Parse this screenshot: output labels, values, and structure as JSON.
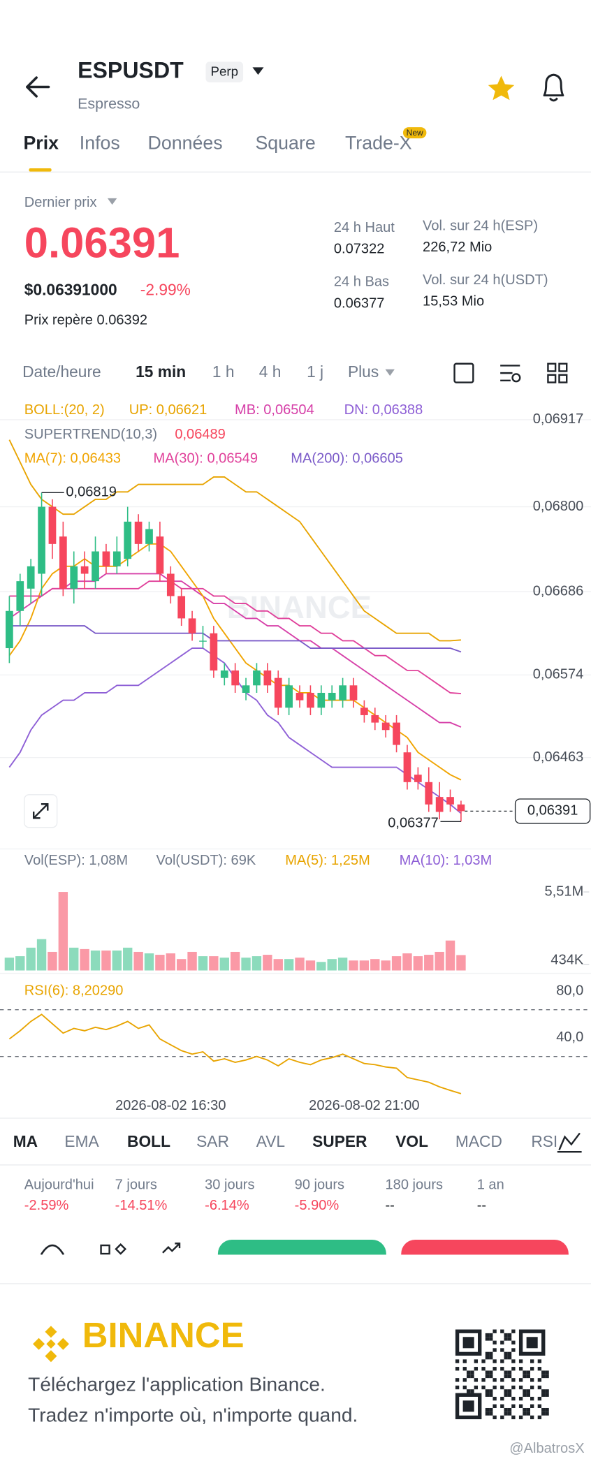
{
  "header": {
    "symbol": "ESPUSDT",
    "badge": "Perp",
    "name": "Espresso"
  },
  "tabs": {
    "items": [
      "Prix",
      "Infos",
      "Données",
      "Square",
      "Trade-X"
    ],
    "badge": "New"
  },
  "price": {
    "label": "Dernier prix",
    "last": "0.06391",
    "usd": "$0.06391000",
    "change": "-2.99%",
    "mark": "Prix repère 0.06392"
  },
  "stats": [
    {
      "label": "24 h Haut",
      "value": "0.07322"
    },
    {
      "label": "Vol. sur 24 h(ESP)",
      "value": "226,72 Mio"
    },
    {
      "label": "24 h Bas",
      "value": "0.06377"
    },
    {
      "label": "Vol. sur 24 h(USDT)",
      "value": "15,53 Mio"
    }
  ],
  "intervals": [
    "Date/heure",
    "15 min",
    "1 h",
    "4 h",
    "1 j",
    "Plus"
  ],
  "chart_data": {
    "type": "candlestick",
    "legend_title": "BOLL:(20, 2)",
    "supertrend": {
      "label": "SUPERTREND(10,3)",
      "value": "0,06489"
    },
    "watermark": "BINANCE",
    "categories": [
      null,
      null,
      null,
      null,
      null,
      null,
      null,
      null,
      null,
      null,
      null,
      null,
      null,
      null,
      null,
      "2026-08-02 16:30",
      null,
      null,
      null,
      null,
      null,
      null,
      null,
      null,
      null,
      null,
      null,
      null,
      null,
      null,
      null,
      null,
      null,
      "2026-08-02 21:00",
      null,
      null,
      null,
      null,
      null,
      null,
      null,
      null,
      null
    ],
    "candles": [
      [
        0.0661,
        0.0668,
        0.0659,
        0.0666
      ],
      [
        0.0666,
        0.0671,
        0.0664,
        0.067
      ],
      [
        0.0669,
        0.0673,
        0.0667,
        0.0672
      ],
      [
        0.0671,
        0.06819,
        0.0668,
        0.068
      ],
      [
        0.068,
        0.0681,
        0.0673,
        0.0675
      ],
      [
        0.0676,
        0.0678,
        0.0668,
        0.0669
      ],
      [
        0.0669,
        0.0674,
        0.0667,
        0.0672
      ],
      [
        0.0672,
        0.0674,
        0.0669,
        0.0671
      ],
      [
        0.067,
        0.0676,
        0.0669,
        0.0674
      ],
      [
        0.0674,
        0.0675,
        0.0671,
        0.0672
      ],
      [
        0.0672,
        0.0676,
        0.0671,
        0.0674
      ],
      [
        0.0673,
        0.068,
        0.0672,
        0.0678
      ],
      [
        0.0678,
        0.0679,
        0.0674,
        0.0675
      ],
      [
        0.0675,
        0.0678,
        0.0674,
        0.0677
      ],
      [
        0.0676,
        0.0678,
        0.067,
        0.0671
      ],
      [
        0.0671,
        0.0672,
        0.0667,
        0.0668
      ],
      [
        0.0668,
        0.0669,
        0.0664,
        0.0665
      ],
      [
        0.0665,
        0.0666,
        0.0662,
        0.0663
      ],
      [
        0.0662,
        0.0664,
        0.0661,
        0.0662
      ],
      [
        0.0663,
        0.0664,
        0.0657,
        0.0658
      ],
      [
        0.0657,
        0.0659,
        0.0656,
        0.0658
      ],
      [
        0.0658,
        0.0659,
        0.0655,
        0.0656
      ],
      [
        0.0655,
        0.0657,
        0.0654,
        0.0656
      ],
      [
        0.0656,
        0.0659,
        0.0655,
        0.0658
      ],
      [
        0.0658,
        0.0659,
        0.0655,
        0.0656
      ],
      [
        0.0657,
        0.0658,
        0.0652,
        0.0653
      ],
      [
        0.0653,
        0.0657,
        0.0652,
        0.0656
      ],
      [
        0.0655,
        0.0656,
        0.0653,
        0.0654
      ],
      [
        0.0655,
        0.0656,
        0.0652,
        0.0653
      ],
      [
        0.0653,
        0.0656,
        0.0652,
        0.0655
      ],
      [
        0.0654,
        0.0656,
        0.0653,
        0.0655
      ],
      [
        0.0654,
        0.0657,
        0.0653,
        0.0656
      ],
      [
        0.0656,
        0.0657,
        0.0653,
        0.0654
      ],
      [
        0.0653,
        0.0654,
        0.0651,
        0.0652
      ],
      [
        0.0652,
        0.0653,
        0.065,
        0.0651
      ],
      [
        0.0651,
        0.0652,
        0.0649,
        0.065
      ],
      [
        0.0651,
        0.0652,
        0.0647,
        0.0648
      ],
      [
        0.0647,
        0.0648,
        0.0642,
        0.0643
      ],
      [
        0.0644,
        0.0645,
        0.0642,
        0.0643
      ],
      [
        0.0643,
        0.0645,
        0.0639,
        0.064
      ],
      [
        0.0641,
        0.0643,
        0.0638,
        0.0639
      ],
      [
        0.0641,
        0.0642,
        0.0639,
        0.064
      ],
      [
        0.064,
        0.06405,
        0.06377,
        0.06391
      ]
    ],
    "up_color": "#2ebd85",
    "down_color": "#f6465d",
    "ylim": [
      0.06344,
      0.06947
    ],
    "yticks": [
      {
        "value": 0.06917,
        "label": "0,06917"
      },
      {
        "value": 0.068,
        "label": "0,06800"
      },
      {
        "value": 0.06686,
        "label": "0,06686"
      },
      {
        "value": 0.06574,
        "label": "0,06574"
      },
      {
        "value": 0.06463,
        "label": "0,06463"
      }
    ],
    "grid": true,
    "series": [
      {
        "name": "UP: 0,06621",
        "color": "#e8a400",
        "values": [
          0.0689,
          0.0686,
          0.0683,
          0.0681,
          0.068,
          0.0679,
          0.0679,
          0.068,
          0.0681,
          0.0681,
          0.0682,
          0.0682,
          0.0683,
          0.0683,
          0.0683,
          0.0683,
          0.0683,
          0.0683,
          0.0683,
          0.0684,
          0.0684,
          0.0683,
          0.0682,
          0.0682,
          0.0681,
          0.068,
          0.0679,
          0.0678,
          0.0676,
          0.0674,
          0.0672,
          0.067,
          0.0668,
          0.0666,
          0.0665,
          0.0664,
          0.0663,
          0.0663,
          0.0663,
          0.0663,
          0.0662,
          0.0662,
          0.06621
        ]
      },
      {
        "name": "MB: 0,06504",
        "color": "#d63fa8",
        "values": [
          0.0665,
          0.0666,
          0.0667,
          0.0668,
          0.0669,
          0.0669,
          0.067,
          0.067,
          0.067,
          0.0671,
          0.0671,
          0.0671,
          0.0671,
          0.0671,
          0.0671,
          0.067,
          0.067,
          0.0669,
          0.0668,
          0.0667,
          0.0667,
          0.0666,
          0.0665,
          0.0665,
          0.0664,
          0.0664,
          0.0663,
          0.0662,
          0.0662,
          0.0661,
          0.0661,
          0.066,
          0.0659,
          0.0658,
          0.0657,
          0.0656,
          0.0655,
          0.0654,
          0.0653,
          0.0652,
          0.0651,
          0.0651,
          0.06504
        ]
      },
      {
        "name": "DN: 0,06388",
        "color": "#8e5fd6",
        "values": [
          0.0645,
          0.0647,
          0.065,
          0.0652,
          0.0653,
          0.0654,
          0.0654,
          0.0655,
          0.0655,
          0.0655,
          0.0656,
          0.0656,
          0.0656,
          0.0657,
          0.0658,
          0.0659,
          0.066,
          0.0661,
          0.0661,
          0.066,
          0.0659,
          0.0657,
          0.0655,
          0.0654,
          0.0652,
          0.0651,
          0.0649,
          0.0648,
          0.0647,
          0.0646,
          0.0645,
          0.0645,
          0.0645,
          0.0645,
          0.0645,
          0.0645,
          0.0645,
          0.0644,
          0.0643,
          0.0642,
          0.0641,
          0.064,
          0.06388
        ]
      },
      {
        "name": "MA(7): 0,06433",
        "color": "#f0a400",
        "values": [
          0.066,
          0.0662,
          0.0665,
          0.0669,
          0.0671,
          0.0672,
          0.0672,
          0.0673,
          0.0672,
          0.0672,
          0.0672,
          0.0673,
          0.0674,
          0.0675,
          0.0675,
          0.0674,
          0.0672,
          0.067,
          0.0668,
          0.0665,
          0.0663,
          0.0661,
          0.0659,
          0.0658,
          0.0657,
          0.0656,
          0.0656,
          0.0655,
          0.0655,
          0.0654,
          0.0654,
          0.0654,
          0.0654,
          0.0653,
          0.0652,
          0.0651,
          0.065,
          0.0649,
          0.0647,
          0.0646,
          0.0645,
          0.0644,
          0.06433
        ]
      },
      {
        "name": "MA(30): 0,06549",
        "color": "#e0409a",
        "values": [
          0.0668,
          0.0668,
          0.0668,
          0.0668,
          0.0669,
          0.0669,
          0.0669,
          0.0669,
          0.0669,
          0.0669,
          0.0669,
          0.0669,
          0.0669,
          0.067,
          0.067,
          0.067,
          0.0669,
          0.0669,
          0.0669,
          0.0668,
          0.0668,
          0.0667,
          0.0667,
          0.0666,
          0.0666,
          0.0665,
          0.0665,
          0.0664,
          0.0664,
          0.0663,
          0.0663,
          0.0662,
          0.0662,
          0.0661,
          0.066,
          0.066,
          0.0659,
          0.0658,
          0.0658,
          0.0657,
          0.0656,
          0.0655,
          0.06549
        ]
      },
      {
        "name": "MA(200): 0,06605",
        "color": "#7a5ac8",
        "values": [
          0.0664,
          0.0664,
          0.0664,
          0.0664,
          0.0664,
          0.0664,
          0.0664,
          0.0664,
          0.0663,
          0.0663,
          0.0663,
          0.0663,
          0.0663,
          0.0663,
          0.0663,
          0.0663,
          0.0663,
          0.0663,
          0.0663,
          0.0662,
          0.0662,
          0.0662,
          0.0662,
          0.0662,
          0.0662,
          0.0662,
          0.0662,
          0.0662,
          0.0661,
          0.0661,
          0.0661,
          0.0661,
          0.0661,
          0.0661,
          0.0661,
          0.0661,
          0.0661,
          0.0661,
          0.0661,
          0.0661,
          0.0661,
          0.0661,
          0.06605
        ]
      }
    ],
    "annotations": {
      "high": {
        "value": 0.06819,
        "label": "0,06819"
      },
      "low": {
        "value": 0.06377,
        "label": "0,06377"
      },
      "last": {
        "value": 0.06391,
        "label": "0,06391"
      }
    },
    "volume": {
      "legend": [
        {
          "text": "Vol(ESP): 1,08M",
          "color": "#707a8a"
        },
        {
          "text": "Vol(USDT): 69K",
          "color": "#707a8a"
        },
        {
          "text": "MA(5): 1,25M",
          "color": "#e8a400"
        },
        {
          "text": "MA(10): 1,03M",
          "color": "#8e5fd6"
        }
      ],
      "values": [
        0.9,
        1.0,
        1.6,
        2.2,
        1.3,
        5.51,
        1.6,
        1.5,
        1.4,
        1.4,
        1.4,
        1.6,
        1.3,
        1.2,
        1.1,
        1.2,
        0.8,
        1.3,
        1.0,
        1.0,
        0.9,
        1.3,
        0.9,
        1.0,
        1.1,
        0.8,
        0.8,
        0.9,
        0.7,
        0.6,
        0.8,
        0.9,
        0.7,
        0.7,
        0.8,
        0.7,
        1.0,
        1.2,
        1.0,
        1.1,
        1.3,
        2.1,
        1.08
      ],
      "ylim": [
        0,
        5.51
      ],
      "yticks": [
        {
          "value": 5.51,
          "label": "5,51M"
        },
        {
          "value": 0.434,
          "label": "434K"
        }
      ]
    },
    "rsi": {
      "legend": "RSI(6): 8,20290",
      "color": "#e8a400",
      "values": [
        55,
        62,
        70,
        76,
        68,
        60,
        64,
        62,
        65,
        63,
        66,
        70,
        64,
        67,
        55,
        50,
        45,
        42,
        44,
        36,
        38,
        35,
        37,
        40,
        37,
        32,
        38,
        35,
        33,
        37,
        39,
        42,
        38,
        34,
        33,
        31,
        30,
        22,
        20,
        18,
        14,
        11,
        8.2029
      ],
      "ylim": [
        0,
        100
      ],
      "yticks": [
        {
          "value": 80,
          "label": "80,0"
        },
        {
          "value": 40,
          "label": "40,0"
        }
      ]
    }
  },
  "indicator_tabs": [
    "MA",
    "EMA",
    "BOLL",
    "SAR",
    "AVL",
    "SUPER",
    "VOL",
    "MACD",
    "RSI"
  ],
  "periods": [
    {
      "label": "Aujourd'hui",
      "change": "-2.59%"
    },
    {
      "label": "7 jours",
      "change": "-14.51%"
    },
    {
      "label": "30 jours",
      "change": "-6.14%"
    },
    {
      "label": "90 jours",
      "change": "-5.90%"
    },
    {
      "label": "180 jours",
      "change": "--"
    },
    {
      "label": "1 an",
      "change": "--"
    }
  ],
  "footer": {
    "brand": "BINANCE",
    "line1": "Téléchargez l'application Binance.",
    "line2": "Tradez n'importe où, n'importe quand.",
    "watermark": "@AlbatrosX"
  }
}
